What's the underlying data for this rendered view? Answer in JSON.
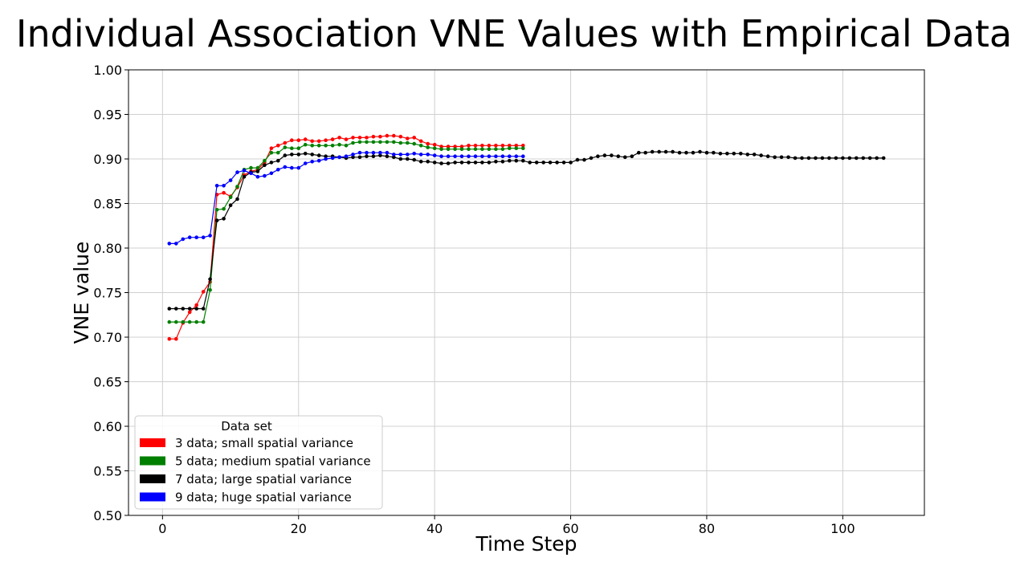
{
  "page": {
    "title": "Individual Association VNE Values with Empirical Data"
  },
  "chart_data": {
    "type": "line",
    "title": "Individual Association VNE Values with Empirical Data",
    "xlabel": "Time Step",
    "ylabel": "VNE value",
    "xlim": [
      -5,
      112
    ],
    "ylim": [
      0.5,
      1.0
    ],
    "xticks": [
      0,
      20,
      40,
      60,
      80,
      100
    ],
    "yticks": [
      0.5,
      0.55,
      0.6,
      0.65,
      0.7,
      0.75,
      0.8,
      0.85,
      0.9,
      0.95,
      1.0
    ],
    "grid": true,
    "legend": {
      "title": "Data set",
      "placement": "lower-left"
    },
    "series": [
      {
        "name": "3 data; small spatial variance",
        "color": "#ff0000",
        "x": [
          1,
          2,
          3,
          4,
          5,
          6,
          7,
          8,
          9,
          10,
          11,
          12,
          13,
          14,
          15,
          16,
          17,
          18,
          19,
          20,
          21,
          22,
          23,
          24,
          25,
          26,
          27,
          28,
          29,
          30,
          31,
          32,
          33,
          34,
          35,
          36,
          37,
          38,
          39,
          40,
          41,
          42,
          43,
          44,
          45,
          46,
          47,
          48,
          49,
          50,
          51,
          52,
          53
        ],
        "values": [
          0.698,
          0.698,
          0.716,
          0.728,
          0.736,
          0.751,
          0.762,
          0.86,
          0.862,
          0.858,
          0.868,
          0.882,
          0.886,
          0.888,
          0.896,
          0.912,
          0.915,
          0.918,
          0.921,
          0.921,
          0.922,
          0.92,
          0.92,
          0.921,
          0.922,
          0.924,
          0.922,
          0.924,
          0.924,
          0.924,
          0.925,
          0.925,
          0.926,
          0.926,
          0.925,
          0.923,
          0.924,
          0.92,
          0.917,
          0.916,
          0.914,
          0.914,
          0.914,
          0.914,
          0.915,
          0.915,
          0.915,
          0.915,
          0.915,
          0.915,
          0.915,
          0.915,
          0.915
        ]
      },
      {
        "name": "5 data; medium spatial variance",
        "color": "#008000",
        "x": [
          1,
          2,
          3,
          4,
          5,
          6,
          7,
          8,
          9,
          10,
          11,
          12,
          13,
          14,
          15,
          16,
          17,
          18,
          19,
          20,
          21,
          22,
          23,
          24,
          25,
          26,
          27,
          28,
          29,
          30,
          31,
          32,
          33,
          34,
          35,
          36,
          37,
          38,
          39,
          40,
          41,
          42,
          43,
          44,
          45,
          46,
          47,
          48,
          49,
          50,
          51,
          52,
          53
        ],
        "values": [
          0.717,
          0.717,
          0.717,
          0.717,
          0.717,
          0.717,
          0.753,
          0.843,
          0.844,
          0.857,
          0.869,
          0.888,
          0.89,
          0.89,
          0.898,
          0.907,
          0.907,
          0.913,
          0.912,
          0.912,
          0.916,
          0.915,
          0.915,
          0.915,
          0.915,
          0.916,
          0.915,
          0.918,
          0.919,
          0.919,
          0.919,
          0.919,
          0.919,
          0.919,
          0.918,
          0.918,
          0.917,
          0.915,
          0.913,
          0.912,
          0.911,
          0.911,
          0.911,
          0.911,
          0.911,
          0.911,
          0.911,
          0.911,
          0.911,
          0.911,
          0.912,
          0.912,
          0.912
        ]
      },
      {
        "name": "7 data; large spatial variance",
        "color": "#000000",
        "x": [
          1,
          2,
          3,
          4,
          5,
          6,
          7,
          8,
          9,
          10,
          11,
          12,
          13,
          14,
          15,
          16,
          17,
          18,
          19,
          20,
          21,
          22,
          23,
          24,
          25,
          26,
          27,
          28,
          29,
          30,
          31,
          32,
          33,
          34,
          35,
          36,
          37,
          38,
          39,
          40,
          41,
          42,
          43,
          44,
          45,
          46,
          47,
          48,
          49,
          50,
          51,
          52,
          53,
          54,
          55,
          56,
          57,
          58,
          59,
          60,
          61,
          62,
          63,
          64,
          65,
          66,
          67,
          68,
          69,
          70,
          71,
          72,
          73,
          74,
          75,
          76,
          77,
          78,
          79,
          80,
          81,
          82,
          83,
          84,
          85,
          86,
          87,
          88,
          89,
          90,
          91,
          92,
          93,
          94,
          95,
          96,
          97,
          98,
          99,
          100,
          101,
          102,
          103,
          104,
          105,
          106
        ],
        "values": [
          0.732,
          0.732,
          0.732,
          0.732,
          0.732,
          0.732,
          0.765,
          0.831,
          0.833,
          0.848,
          0.855,
          0.88,
          0.885,
          0.886,
          0.893,
          0.896,
          0.898,
          0.904,
          0.905,
          0.905,
          0.906,
          0.905,
          0.904,
          0.903,
          0.903,
          0.902,
          0.901,
          0.902,
          0.902,
          0.903,
          0.903,
          0.904,
          0.903,
          0.902,
          0.9,
          0.9,
          0.899,
          0.897,
          0.897,
          0.896,
          0.895,
          0.895,
          0.896,
          0.896,
          0.896,
          0.896,
          0.896,
          0.896,
          0.897,
          0.897,
          0.898,
          0.898,
          0.898,
          0.896,
          0.896,
          0.896,
          0.896,
          0.896,
          0.896,
          0.896,
          0.899,
          0.899,
          0.901,
          0.903,
          0.904,
          0.904,
          0.903,
          0.902,
          0.903,
          0.907,
          0.907,
          0.908,
          0.908,
          0.908,
          0.908,
          0.907,
          0.907,
          0.907,
          0.908,
          0.907,
          0.907,
          0.906,
          0.906,
          0.906,
          0.906,
          0.905,
          0.905,
          0.904,
          0.903,
          0.902,
          0.902,
          0.902,
          0.901,
          0.901,
          0.901,
          0.901,
          0.901,
          0.901,
          0.901,
          0.901,
          0.901,
          0.901,
          0.901,
          0.901,
          0.901,
          0.901
        ]
      },
      {
        "name": "9 data; huge spatial variance",
        "color": "#0000ff",
        "x": [
          1,
          2,
          3,
          4,
          5,
          6,
          7,
          8,
          9,
          10,
          11,
          12,
          13,
          14,
          15,
          16,
          17,
          18,
          19,
          20,
          21,
          22,
          23,
          24,
          25,
          26,
          27,
          28,
          29,
          30,
          31,
          32,
          33,
          34,
          35,
          36,
          37,
          38,
          39,
          40,
          41,
          42,
          43,
          44,
          45,
          46,
          47,
          48,
          49,
          50,
          51,
          52,
          53
        ],
        "values": [
          0.805,
          0.805,
          0.81,
          0.812,
          0.812,
          0.812,
          0.814,
          0.87,
          0.87,
          0.876,
          0.885,
          0.887,
          0.884,
          0.88,
          0.881,
          0.884,
          0.888,
          0.891,
          0.89,
          0.89,
          0.895,
          0.897,
          0.898,
          0.9,
          0.901,
          0.902,
          0.903,
          0.905,
          0.907,
          0.907,
          0.907,
          0.907,
          0.907,
          0.905,
          0.905,
          0.905,
          0.906,
          0.905,
          0.905,
          0.904,
          0.903,
          0.903,
          0.903,
          0.903,
          0.903,
          0.903,
          0.903,
          0.903,
          0.903,
          0.903,
          0.903,
          0.903,
          0.903
        ]
      }
    ]
  }
}
